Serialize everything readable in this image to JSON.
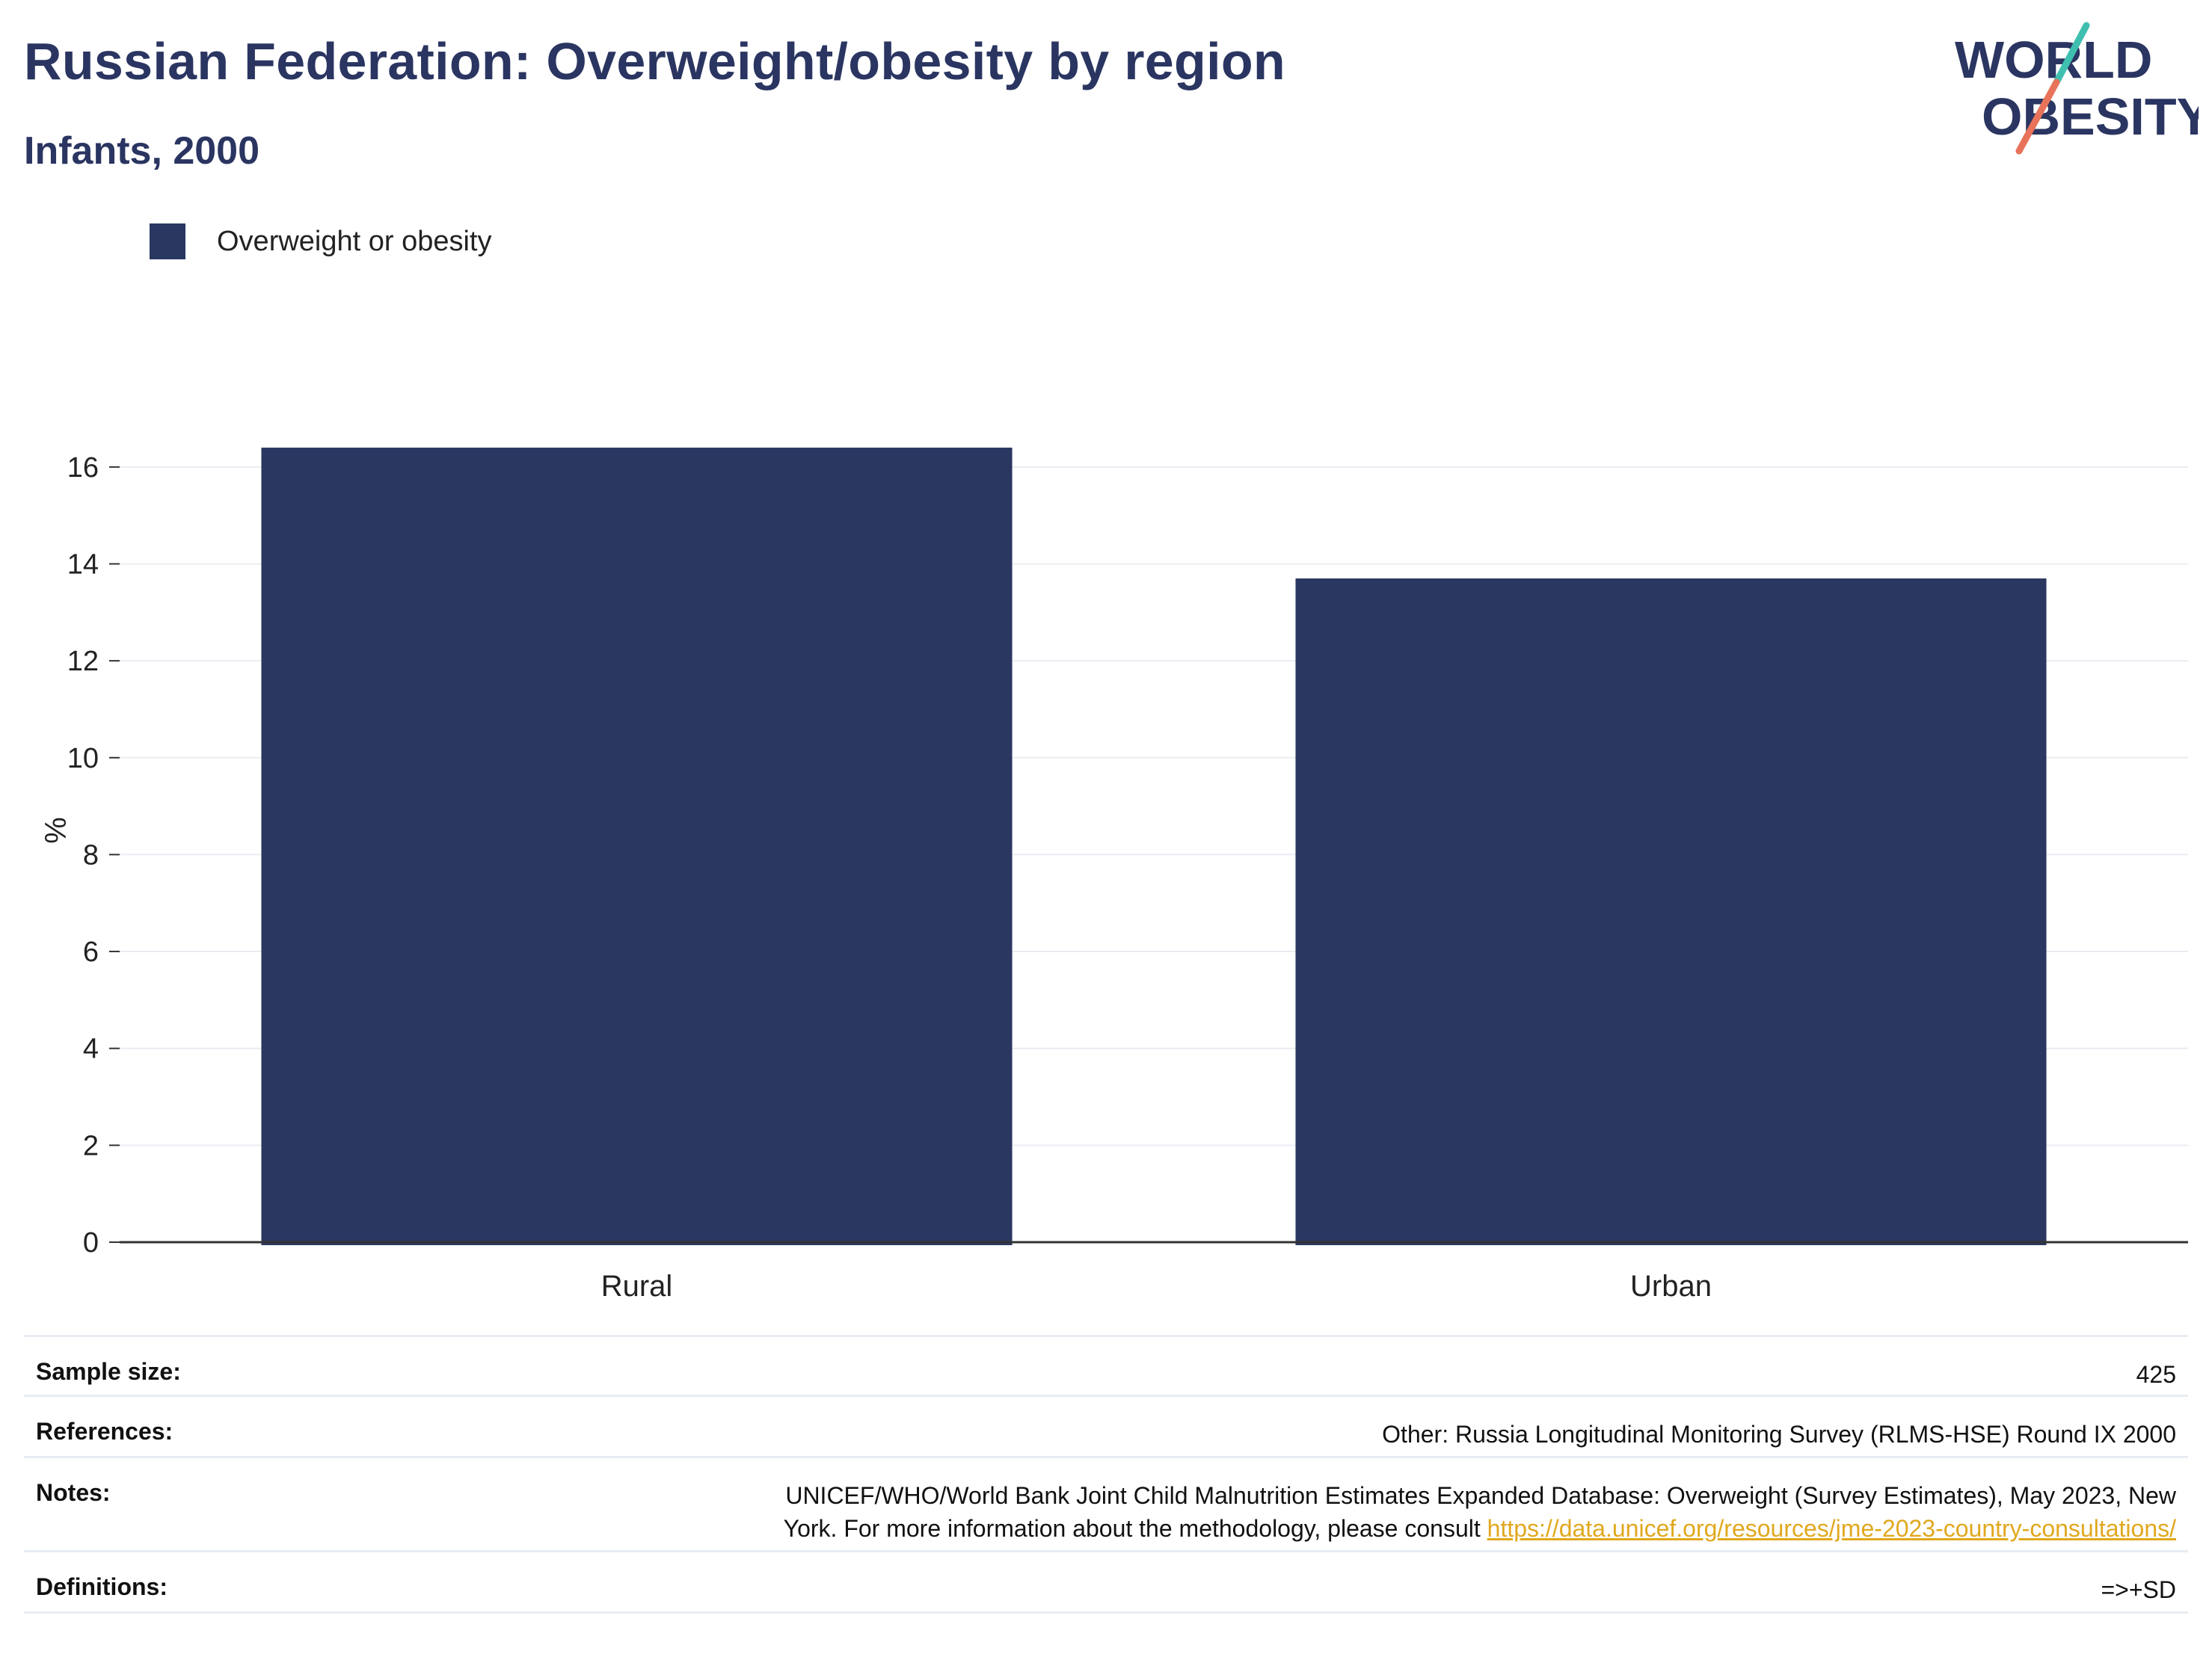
{
  "header": {
    "title": "Russian Federation: Overweight/obesity by region",
    "subtitle": "Infants, 2000"
  },
  "logo": {
    "line1": "WORLD",
    "line2": "OBESITY",
    "colors": {
      "text": "#2a3561",
      "slash_top": "#3fbfb0",
      "slash_bottom": "#e8735a"
    }
  },
  "chart_data": {
    "type": "bar",
    "categories": [
      "Rural",
      "Urban"
    ],
    "series": [
      {
        "name": "Overweight or obesity",
        "values": [
          16.4,
          13.7
        ],
        "color": "#2a3761"
      }
    ],
    "xlabel": "",
    "ylabel": "%",
    "ylim": [
      0,
      17
    ],
    "yticks": [
      0,
      2,
      4,
      6,
      8,
      10,
      12,
      14,
      16
    ],
    "grid": true,
    "legend": "top-left"
  },
  "info": {
    "sample_size_label": "Sample size:",
    "sample_size_value": "425",
    "references_label": "References:",
    "references_value": "Other: Russia Longitudinal Monitoring Survey (RLMS-HSE) Round IX 2000",
    "notes_label": "Notes:",
    "notes_line1": "UNICEF/WHO/World Bank Joint Child Malnutrition Estimates Expanded Database: Overweight (Survey Estimates), May 2023, New",
    "notes_line2": "York. For more information about the methodology, please consult ",
    "notes_link": "https://data.unicef.org/resources/jme-2023-country-consultations/",
    "definitions_label": "Definitions:",
    "definitions_value": "=>+SD"
  }
}
